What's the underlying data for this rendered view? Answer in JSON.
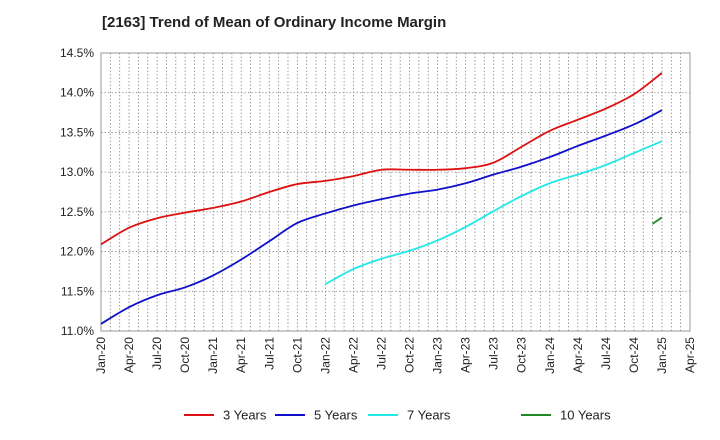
{
  "chart_data": {
    "type": "line",
    "title": "[2163]  Trend of Mean of Ordinary Income Margin",
    "xlabel": "",
    "ylabel": "",
    "ylim": [
      11.0,
      14.5
    ],
    "yticks": [
      "11.0%",
      "11.5%",
      "12.0%",
      "12.5%",
      "13.0%",
      "13.5%",
      "14.0%",
      "14.5%"
    ],
    "ytick_values": [
      11.0,
      11.5,
      12.0,
      12.5,
      13.0,
      13.5,
      14.0,
      14.5
    ],
    "x_ticks": [
      "Jan-20",
      "Apr-20",
      "Jul-20",
      "Oct-20",
      "Jan-21",
      "Apr-21",
      "Jul-21",
      "Oct-21",
      "Jan-22",
      "Apr-22",
      "Jul-22",
      "Oct-22",
      "Jan-23",
      "Apr-23",
      "Jul-23",
      "Oct-23",
      "Jan-24",
      "Apr-24",
      "Jul-24",
      "Oct-24",
      "Jan-25",
      "Apr-25"
    ],
    "grid": true,
    "legend_position": "bottom",
    "series": [
      {
        "name": "3 Years",
        "color": "#dd1111",
        "x": [
          "Jan-20",
          "Apr-20",
          "Jul-20",
          "Oct-20",
          "Jan-21",
          "Apr-21",
          "Jul-21",
          "Oct-21",
          "Jan-22",
          "Apr-22",
          "Jul-22",
          "Oct-22",
          "Jan-23",
          "Apr-23",
          "Jul-23",
          "Oct-23",
          "Jan-24",
          "Apr-24",
          "Jul-24",
          "Oct-24",
          "Jan-25"
        ],
        "values": [
          12.09,
          12.3,
          12.42,
          12.49,
          12.55,
          12.63,
          12.75,
          12.85,
          12.89,
          12.95,
          13.03,
          13.03,
          13.03,
          13.05,
          13.12,
          13.32,
          13.52,
          13.66,
          13.8,
          13.98,
          14.25
        ]
      },
      {
        "name": "5 Years",
        "color": "#1010cc",
        "x": [
          "Jan-20",
          "Apr-20",
          "Jul-20",
          "Oct-20",
          "Jan-21",
          "Apr-21",
          "Jul-21",
          "Oct-21",
          "Jan-22",
          "Apr-22",
          "Jul-22",
          "Oct-22",
          "Jan-23",
          "Apr-23",
          "Jul-23",
          "Oct-23",
          "Jan-24",
          "Apr-24",
          "Jul-24",
          "Oct-24",
          "Jan-25"
        ],
        "values": [
          11.09,
          11.3,
          11.45,
          11.55,
          11.7,
          11.9,
          12.13,
          12.36,
          12.48,
          12.58,
          12.66,
          12.73,
          12.78,
          12.86,
          12.97,
          13.07,
          13.19,
          13.33,
          13.46,
          13.6,
          13.78
        ]
      },
      {
        "name": "7 Years",
        "color": "#22e8e8",
        "x": [
          "Jan-22",
          "Apr-22",
          "Jul-22",
          "Oct-22",
          "Jan-23",
          "Apr-23",
          "Jul-23",
          "Oct-23",
          "Jan-24",
          "Apr-24",
          "Jul-24",
          "Oct-24",
          "Jan-25"
        ],
        "values": [
          11.59,
          11.78,
          11.91,
          12.01,
          12.14,
          12.31,
          12.51,
          12.7,
          12.86,
          12.97,
          13.09,
          13.24,
          13.39
        ]
      },
      {
        "name": "10 Years",
        "color": "#228822",
        "x": [
          "Dec-24",
          "Jan-25"
        ],
        "values": [
          12.35,
          12.43
        ]
      }
    ]
  }
}
